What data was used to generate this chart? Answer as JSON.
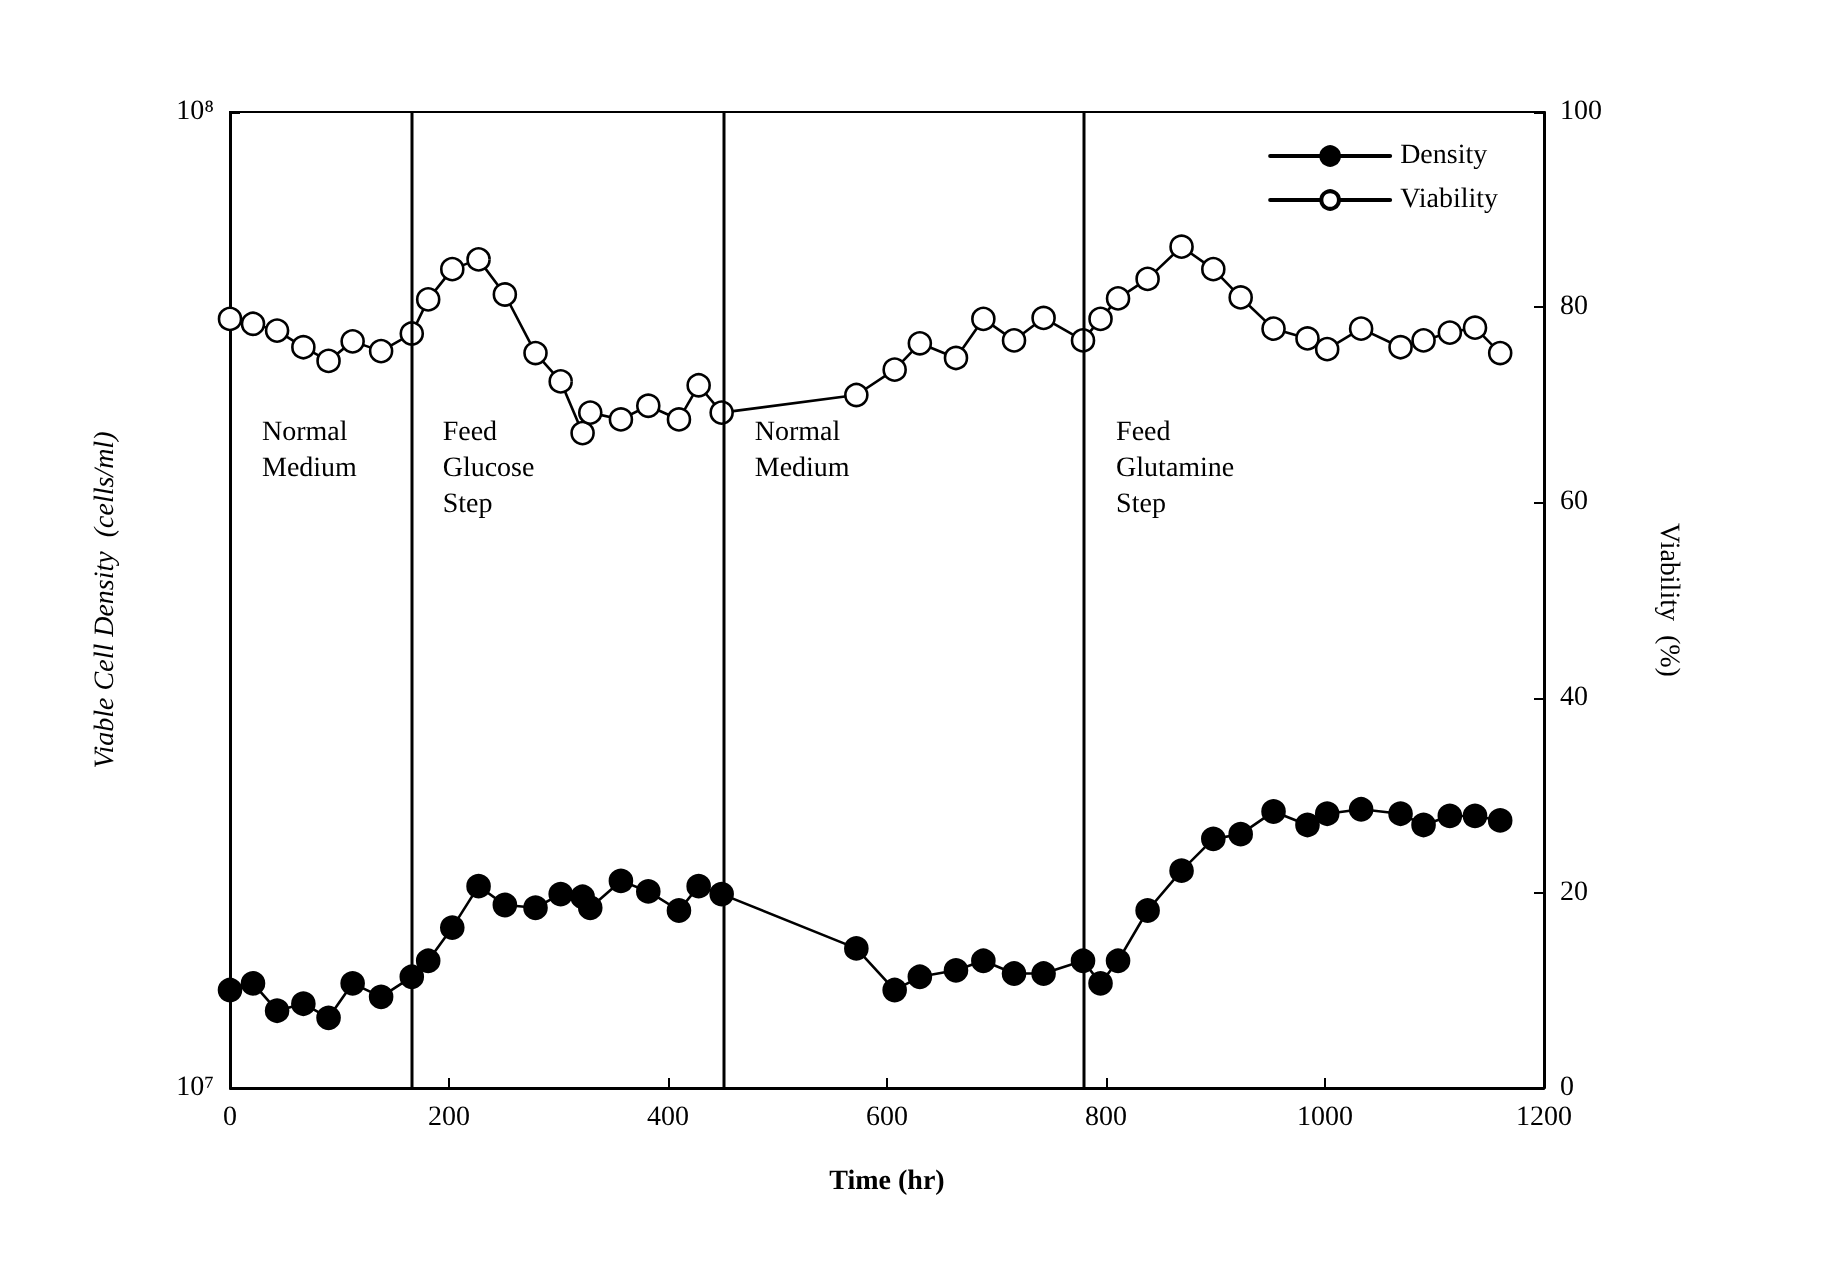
{
  "chart_data": {
    "type": "line",
    "xlabel": "Time (hr)",
    "ylabel": "Viable Cell Density  (cells/ml)",
    "y2label": "Viability  (%)",
    "x": [
      0,
      21,
      43,
      67,
      90,
      112,
      138,
      166,
      181,
      203,
      227,
      251,
      279,
      302,
      322,
      329,
      357,
      382,
      410,
      428,
      449,
      572,
      607,
      630,
      663,
      688,
      716,
      743,
      779,
      795,
      811,
      838,
      869,
      898,
      923,
      953,
      984,
      1002,
      1033,
      1069,
      1090,
      1114,
      1137,
      1160
    ],
    "series": [
      {
        "name": "Density",
        "color": "#000000",
        "values": [
          12600000,
          12800000,
          12000000,
          12200000,
          11800000,
          12800000,
          12400000,
          13000000,
          13500000,
          14600000,
          16100000,
          15400000,
          15300000,
          15800000,
          15700000,
          15300000,
          16300000,
          15900000,
          15200000,
          16100000,
          15800000,
          13900000,
          12600000,
          13000000,
          13200000,
          13500000,
          13100000,
          13100000,
          13500000,
          12800000,
          13500000,
          15200000,
          16700000,
          18000000,
          18200000,
          19200000,
          18600000,
          19100000,
          19300000,
          19100000,
          18600000,
          19000000,
          19000000,
          18800000
        ]
      },
      {
        "name": "Viability",
        "color": "#000000",
        "axis": "y2",
        "values": [
          78.8,
          78.3,
          77.6,
          75.9,
          74.5,
          76.5,
          75.5,
          77.3,
          80.8,
          83.9,
          84.9,
          81.3,
          75.3,
          72.4,
          67.1,
          69.2,
          68.5,
          69.9,
          68.5,
          72.0,
          69.2,
          71.0,
          73.6,
          76.3,
          74.8,
          78.8,
          76.6,
          78.9,
          76.6,
          78.8,
          80.9,
          82.9,
          86.2,
          83.9,
          81.0,
          77.8,
          76.8,
          75.7,
          77.8,
          75.9,
          76.6,
          77.4,
          77.9,
          75.3
        ]
      }
    ],
    "log": "y",
    "xlim": [
      0,
      1200
    ],
    "xticks": [
      0,
      200,
      400,
      600,
      800,
      1000,
      1200
    ],
    "ylim": [
      10000000,
      100000000
    ],
    "yticks": [
      {
        "value": 10000000,
        "label": "10⁷"
      },
      {
        "value": 100000000,
        "label": "10⁸"
      }
    ],
    "y2lim": [
      0,
      100
    ],
    "y2ticks": [
      0,
      20,
      40,
      60,
      80,
      100
    ],
    "ref_lines": [
      {
        "axis": "x",
        "value": 165
      },
      {
        "axis": "x",
        "value": 450
      },
      {
        "axis": "x",
        "value": 780
      }
    ],
    "annotations": [
      "Normal\nMedium",
      "Feed\nGlucose\nStep",
      "Normal\nMedium",
      "Feed\nGlutamine\nStep"
    ],
    "marker": "circle",
    "line_style": "solid",
    "grid": false,
    "legend": "top right"
  }
}
